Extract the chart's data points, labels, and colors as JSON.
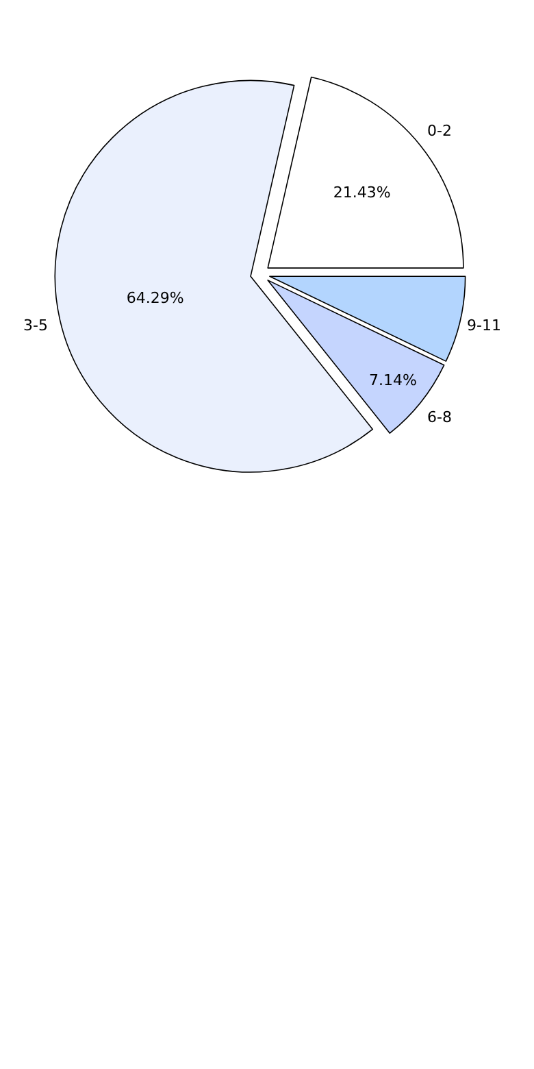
{
  "chart_data": {
    "type": "pie",
    "categories": [
      "0-2",
      "3-5",
      "6-8",
      "9-11"
    ],
    "values": [
      21.43,
      64.29,
      7.14,
      7.14
    ],
    "value_labels": [
      "21.43%",
      "64.29%",
      "7.14%",
      null
    ],
    "colors": [
      "#ffffff",
      "#eaf0fd",
      "#c5d5fe",
      "#b3d5fe"
    ],
    "legend": false
  }
}
